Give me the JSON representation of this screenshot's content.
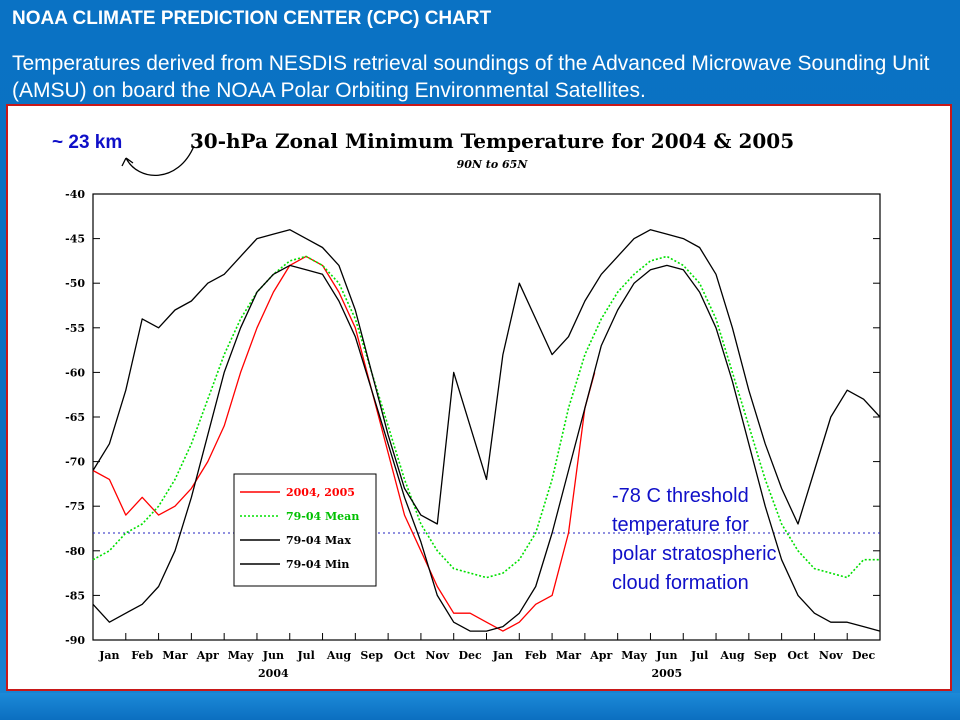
{
  "slide": {
    "title": "NOAA CLIMATE PREDICTION CENTER (CPC) CHART",
    "subtitle": "Temperatures derived from NESDIS retrieval soundings of the Advanced Microwave Sounding Unit (AMSU) on board the NOAA Polar Orbiting Environmental Satellites."
  },
  "annotations": {
    "altitude": "~ 23 km",
    "threshold_lines": [
      "-78 C threshold",
      "temperature for",
      "polar stratospheric",
      "cloud formation"
    ]
  },
  "colors": {
    "slide_bg": "#0b6fc0",
    "frame_border": "#c81818",
    "series_2004_2005": "#ff0000",
    "series_mean": "#00e000",
    "series_max_min": "#000000",
    "threshold": "#2020c0",
    "annotation_text": "#1010c8"
  },
  "chart_data": {
    "type": "line",
    "title": "30-hPa Zonal Minimum Temperature for 2004 & 2005",
    "subtitle": "90N to 65N",
    "xlabel": "",
    "ylabel": "",
    "ylim": [
      -90,
      -40
    ],
    "yticks": [
      -40,
      -45,
      -50,
      -55,
      -60,
      -65,
      -70,
      -75,
      -80,
      -85,
      -90
    ],
    "xlim": [
      0,
      24
    ],
    "month_labels": [
      "Jan",
      "Feb",
      "Mar",
      "Apr",
      "May",
      "Jun",
      "Jul",
      "Aug",
      "Sep",
      "Oct",
      "Nov",
      "Dec",
      "Jan",
      "Feb",
      "Mar",
      "Apr",
      "May",
      "Jun",
      "Jul",
      "Aug",
      "Sep",
      "Oct",
      "Nov",
      "Dec"
    ],
    "year_labels": [
      {
        "label": "2004",
        "month": 5.5
      },
      {
        "label": "2005",
        "month": 17.5
      }
    ],
    "threshold": {
      "value": -78,
      "style": "dotted"
    },
    "legend": {
      "placement": "center-left",
      "entries": [
        "2004, 2005",
        "79-04 Mean",
        "79-04 Max",
        "79-04 Min"
      ]
    },
    "grid": false,
    "series": [
      {
        "name": "2004, 2005",
        "color": "#ff0000",
        "style": "solid",
        "x": [
          0,
          0.5,
          1,
          1.5,
          2,
          2.5,
          3,
          3.5,
          4,
          4.5,
          5,
          5.5,
          6,
          6.5,
          7,
          7.5,
          8,
          8.5,
          9,
          9.5,
          10,
          10.5,
          11,
          11.5,
          12,
          12.5,
          13,
          13.5,
          14,
          14.5,
          15,
          15.3
        ],
        "y": [
          -71,
          -72,
          -76,
          -74,
          -76,
          -75,
          -73,
          -70,
          -66,
          -60,
          -55,
          -51,
          -48,
          -47,
          -48,
          -51,
          -55,
          -62,
          -69,
          -76,
          -80,
          -84,
          -87,
          -87,
          -88,
          -89,
          -88,
          -86,
          -85,
          -78,
          -64,
          -60
        ]
      },
      {
        "name": "79-04 Mean",
        "color": "#00e000",
        "style": "dotted",
        "x": [
          0,
          0.5,
          1,
          1.5,
          2,
          2.5,
          3,
          3.5,
          4,
          4.5,
          5,
          5.5,
          6,
          6.5,
          7,
          7.5,
          8,
          8.5,
          9,
          9.5,
          10,
          10.5,
          11,
          11.5,
          12,
          12.5,
          13,
          13.5,
          14,
          14.5,
          15,
          15.5,
          16,
          16.5,
          17,
          17.5,
          18,
          18.5,
          19,
          19.5,
          20,
          20.5,
          21,
          21.5,
          22,
          22.5,
          23,
          23.5,
          24
        ],
        "y": [
          -81,
          -80,
          -78,
          -77,
          -75,
          -72,
          -68,
          -63,
          -58,
          -54,
          -51,
          -49,
          -47.5,
          -47,
          -48,
          -50,
          -54,
          -60,
          -66,
          -72,
          -77,
          -80,
          -82,
          -82.5,
          -83,
          -82.5,
          -81,
          -78,
          -72,
          -64,
          -58,
          -54,
          -51,
          -49,
          -47.5,
          -47,
          -48,
          -50,
          -54,
          -60,
          -66,
          -72,
          -77,
          -80,
          -82,
          -82.5,
          -83,
          -81,
          -81
        ]
      },
      {
        "name": "79-04 Max",
        "color": "#000000",
        "style": "solid",
        "x": [
          0,
          0.5,
          1,
          1.5,
          2,
          2.5,
          3,
          3.5,
          4,
          4.5,
          5,
          5.5,
          6,
          6.5,
          7,
          7.5,
          8,
          8.5,
          9,
          9.5,
          10,
          10.5,
          11,
          11.5,
          12,
          12.5,
          13,
          13.5,
          14,
          14.5,
          15,
          15.5,
          16,
          16.5,
          17,
          17.5,
          18,
          18.5,
          19,
          19.5,
          20,
          20.5,
          21,
          21.5,
          22,
          22.5,
          23,
          23.5,
          24
        ],
        "y": [
          -71,
          -68,
          -62,
          -54,
          -55,
          -53,
          -52,
          -50,
          -49,
          -47,
          -45,
          -44.5,
          -44,
          -45,
          -46,
          -48,
          -53,
          -60,
          -67,
          -73,
          -76,
          -77,
          -60,
          -66,
          -72,
          -58,
          -50,
          -54,
          -58,
          -56,
          -52,
          -49,
          -47,
          -45,
          -44,
          -44.5,
          -45,
          -46,
          -49,
          -55,
          -62,
          -68,
          -73,
          -77,
          -71,
          -65,
          -62,
          -63,
          -65
        ]
      },
      {
        "name": "79-04 Min",
        "color": "#000000",
        "style": "solid",
        "x": [
          0,
          0.5,
          1,
          1.5,
          2,
          2.5,
          3,
          3.5,
          4,
          4.5,
          5,
          5.5,
          6,
          6.5,
          7,
          7.5,
          8,
          8.5,
          9,
          9.5,
          10,
          10.5,
          11,
          11.5,
          12,
          12.5,
          13,
          13.5,
          14,
          14.5,
          15,
          15.5,
          16,
          16.5,
          17,
          17.5,
          18,
          18.5,
          19,
          19.5,
          20,
          20.5,
          21,
          21.5,
          22,
          22.5,
          23,
          23.5,
          24
        ],
        "y": [
          -86,
          -88,
          -87,
          -86,
          -84,
          -80,
          -74,
          -67,
          -60,
          -55,
          -51,
          -49,
          -48,
          -48.5,
          -49,
          -52,
          -56,
          -62,
          -68,
          -74,
          -79,
          -85,
          -88,
          -89,
          -89,
          -88.5,
          -87,
          -84,
          -78,
          -71,
          -64,
          -57,
          -53,
          -50,
          -48.5,
          -48,
          -48.5,
          -51,
          -55,
          -61,
          -68,
          -75,
          -81,
          -85,
          -87,
          -88,
          -88,
          -88.5,
          -89
        ]
      }
    ]
  }
}
